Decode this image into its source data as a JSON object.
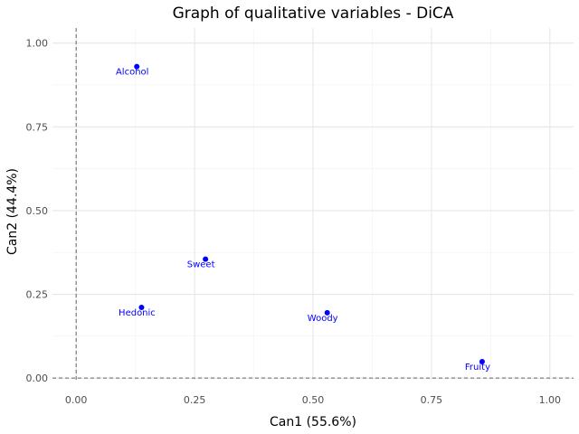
{
  "chart_data": {
    "type": "scatter",
    "title": "Graph of qualitative variables - DiCA",
    "xlabel": "Can1 (55.6%)",
    "ylabel": "Can2 (44.4%)",
    "xlim": [
      -0.05,
      1.05
    ],
    "ylim": [
      -0.005,
      1.045
    ],
    "xticks": [
      {
        "value": 0,
        "label": "0.00"
      },
      {
        "value": 0.25,
        "label": "0.25"
      },
      {
        "value": 0.5,
        "label": "0.50"
      },
      {
        "value": 0.75,
        "label": "0.75"
      },
      {
        "value": 1,
        "label": "1.00"
      }
    ],
    "yticks": [
      {
        "value": 0,
        "label": "0.00"
      },
      {
        "value": 0.25,
        "label": "0.25"
      },
      {
        "value": 0.5,
        "label": "0.50"
      },
      {
        "value": 0.75,
        "label": "0.75"
      },
      {
        "value": 1,
        "label": "1.00"
      }
    ],
    "grid": true,
    "reference_lines": {
      "x": 0,
      "y": 0,
      "style": "dashed"
    },
    "point_color": "#0000ff",
    "label_color": "#0000ff",
    "points": [
      {
        "label": "Alcohol",
        "x": 0.128,
        "y": 0.93
      },
      {
        "label": "Sweet",
        "x": 0.273,
        "y": 0.355
      },
      {
        "label": "Hedonic",
        "x": 0.138,
        "y": 0.211
      },
      {
        "label": "Woody",
        "x": 0.53,
        "y": 0.195
      },
      {
        "label": "Fruity",
        "x": 0.857,
        "y": 0.049
      }
    ]
  }
}
